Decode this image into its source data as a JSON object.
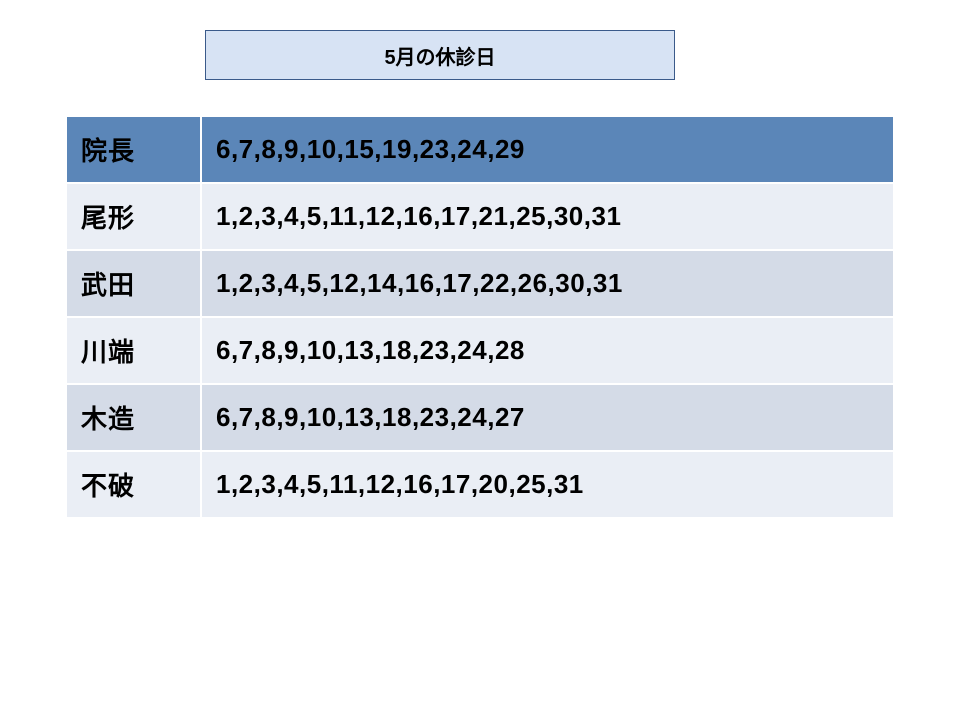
{
  "title": {
    "text": "5月の休診日",
    "background_color": "#d7e3f4",
    "border_color": "#3a5a8a",
    "font_color": "#000000",
    "font_size": 20
  },
  "table": {
    "header_row_bg": "#5b86b8",
    "alt_row_bg_light": "#eaeef5",
    "alt_row_bg_mid": "#d4dbe7",
    "rows": [
      {
        "name": "院長",
        "dates": "6,7,8,9,10,15,19,23,24,29"
      },
      {
        "name": "尾形",
        "dates": "1,2,3,4,5,11,12,16,17,21,25,30,31"
      },
      {
        "name": "武田",
        "dates": "1,2,3,4,5,12,14,16,17,22,26,30,31"
      },
      {
        "name": "川端",
        "dates": "6,7,8,9,10,13,18,23,24,28"
      },
      {
        "name": "木造",
        "dates": "6,7,8,9,10,13,18,23,24,27"
      },
      {
        "name": "不破",
        "dates": "1,2,3,4,5,11,12,16,17,20,25,31"
      }
    ]
  }
}
